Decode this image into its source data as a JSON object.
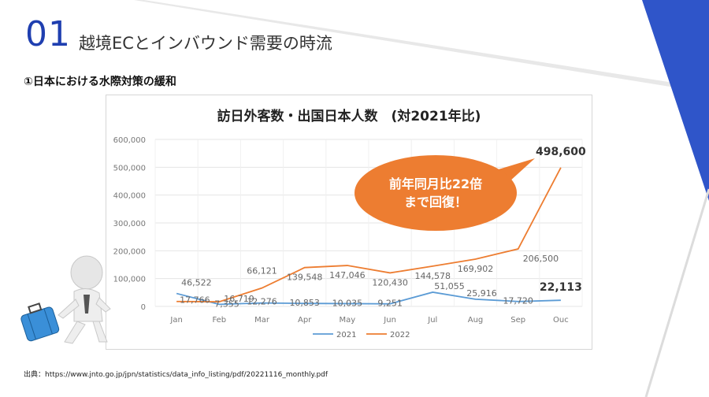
{
  "slide": {
    "number": "01",
    "title": "越境ECとインバウンド需要の時流",
    "subtitle": "①日本における水際対策の緩和",
    "source": "出典：https://www.jnto.go.jp/jpn/statistics/data_info_listing/pdf/20221116_monthly.pdf",
    "callout": [
      "前年同月比22倍",
      "まで回復！"
    ]
  },
  "colors": {
    "accent_blue": "#2f55c9",
    "series_2021": "#5b9bd5",
    "series_2022": "#ed7d31",
    "callout": "#ed7d31"
  },
  "chart_data": {
    "type": "line",
    "title": "訪日外客数・出国日本人数　(対2021年比)",
    "categories": [
      "Jan",
      "Feb",
      "Mar",
      "Apr",
      "May",
      "Jun",
      "Jul",
      "Aug",
      "Sep",
      "Ouc"
    ],
    "ylim": [
      0,
      600000
    ],
    "yticks": [
      "0",
      "100,000",
      "200,000",
      "300,000",
      "400,000",
      "500,000",
      "600,000"
    ],
    "ytick_values": [
      0,
      100000,
      200000,
      300000,
      400000,
      500000,
      600000
    ],
    "grid": true,
    "legend": "bottom",
    "series": [
      {
        "name": "2021",
        "color": "#5b9bd5",
        "values": [
          46522,
          7355,
          12276,
          10853,
          10035,
          9251,
          51055,
          25916,
          17720,
          22113
        ],
        "labels": [
          "46,522",
          "7,355",
          "12,276",
          "10,853",
          "10,035",
          "9,251",
          "51,055",
          "25,916",
          "17,720",
          "22,113"
        ]
      },
      {
        "name": "2022",
        "color": "#ed7d31",
        "values": [
          17766,
          16719,
          66121,
          139548,
          147046,
          120430,
          144578,
          169902,
          206500,
          498600
        ],
        "labels": [
          "17,766",
          "16,719",
          "66,121",
          "139,548",
          "147,046",
          "120,430",
          "144,578",
          "169,902",
          "206,500",
          "498,600"
        ]
      }
    ]
  }
}
